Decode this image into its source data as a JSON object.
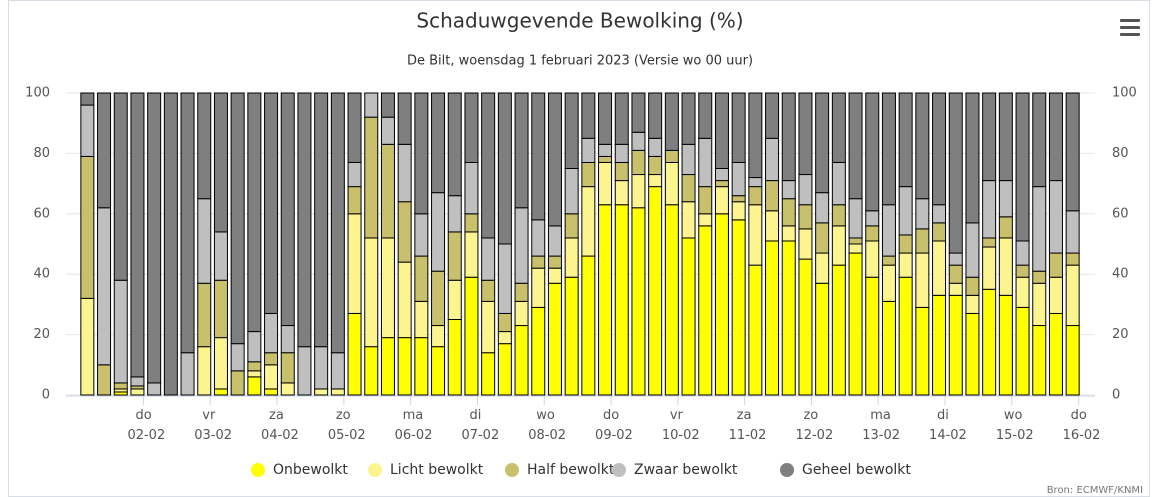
{
  "chart_data": {
    "type": "stacked_bar",
    "title": "Schaduwgevende Bewolking (%)",
    "subtitle": "De Bilt, woensdag 1 februari 2023 (Versie wo 00 uur)",
    "credits": "Bron: ECMWF/KNMI",
    "categories": [
      null,
      null,
      null,
      "do 02-02",
      null,
      null,
      null,
      "vr 03-02",
      null,
      null,
      null,
      "za 04-02",
      null,
      null,
      null,
      "zo 05-02",
      null,
      null,
      null,
      "ma 06-02",
      null,
      null,
      null,
      "di 07-02",
      null,
      null,
      null,
      "wo 08-02",
      null,
      null,
      null,
      "do 09-02",
      null,
      null,
      null,
      "vr 10-02",
      null,
      null,
      null,
      "za 11-02",
      null,
      null,
      null,
      "zo 12-02",
      null,
      null,
      null,
      "ma 13-02",
      null,
      null,
      null,
      "di 14-02",
      null,
      null,
      null,
      "wo 15-02",
      null,
      null,
      null,
      "do 16-02"
    ],
    "series": [
      {
        "name": "Onbewolkt",
        "color": "#ffff00",
        "values": [
          0,
          0,
          1,
          0,
          0,
          0,
          0,
          0,
          2,
          0,
          6,
          2,
          0,
          0,
          0,
          0,
          27,
          16,
          19,
          19,
          19,
          16,
          25,
          39,
          14,
          17,
          23,
          29,
          37,
          39,
          46,
          63,
          63,
          62,
          69,
          63,
          52,
          56,
          60,
          58,
          43,
          51,
          51,
          45,
          37,
          43,
          47,
          39,
          31,
          39,
          29,
          33,
          33,
          27,
          35,
          33,
          29,
          23,
          27,
          23
        ]
      },
      {
        "name": "Licht bewolkt",
        "color": "#fbf48f",
        "values": [
          32,
          0,
          1,
          2,
          0,
          0,
          0,
          16,
          17,
          0,
          2,
          8,
          4,
          0,
          2,
          2,
          33,
          36,
          33,
          25,
          12,
          7,
          13,
          15,
          17,
          4,
          8,
          13,
          5,
          13,
          23,
          14,
          8,
          11,
          4,
          14,
          12,
          4,
          9,
          6,
          20,
          10,
          5,
          10,
          10,
          13,
          3,
          12,
          12,
          8,
          18,
          18,
          4,
          6,
          14,
          19,
          10,
          14,
          12,
          20
        ]
      },
      {
        "name": "Half bewolkt",
        "color": "#c9c06b",
        "values": [
          47,
          10,
          2,
          1,
          0,
          0,
          0,
          21,
          19,
          8,
          3,
          4,
          10,
          0,
          0,
          0,
          9,
          40,
          31,
          20,
          15,
          18,
          16,
          6,
          7,
          6,
          6,
          4,
          4,
          8,
          8,
          2,
          6,
          8,
          6,
          4,
          9,
          9,
          2,
          2,
          6,
          10,
          9,
          8,
          10,
          7,
          2,
          5,
          3,
          6,
          8,
          6,
          6,
          6,
          3,
          7,
          4,
          4,
          8,
          4
        ]
      },
      {
        "name": "Zwaar bewolkt",
        "color": "#bfbfbf",
        "values": [
          17,
          52,
          34,
          3,
          4,
          0,
          14,
          28,
          16,
          9,
          10,
          13,
          9,
          16,
          14,
          12,
          8,
          8,
          9,
          19,
          14,
          26,
          12,
          17,
          14,
          23,
          25,
          12,
          10,
          15,
          8,
          4,
          6,
          6,
          6,
          0,
          10,
          16,
          4,
          11,
          3,
          14,
          6,
          10,
          10,
          14,
          13,
          5,
          17,
          16,
          10,
          6,
          4,
          18,
          19,
          12,
          8,
          28,
          24,
          14
        ]
      },
      {
        "name": "Geheel bewolkt",
        "color": "#7f7f7f",
        "values": [
          4,
          38,
          62,
          94,
          96,
          100,
          86,
          35,
          46,
          83,
          79,
          73,
          77,
          84,
          84,
          86,
          23,
          0,
          8,
          17,
          40,
          33,
          34,
          23,
          48,
          50,
          38,
          42,
          44,
          25,
          15,
          17,
          17,
          13,
          15,
          19,
          17,
          15,
          25,
          23,
          28,
          15,
          29,
          27,
          33,
          23,
          35,
          39,
          37,
          31,
          35,
          37,
          53,
          43,
          29,
          29,
          49,
          31,
          29,
          39
        ]
      }
    ],
    "ylim": [
      0,
      100
    ],
    "yticks": [
      0,
      20,
      40,
      60,
      80,
      100
    ],
    "grid": true,
    "legend": "bottom"
  }
}
